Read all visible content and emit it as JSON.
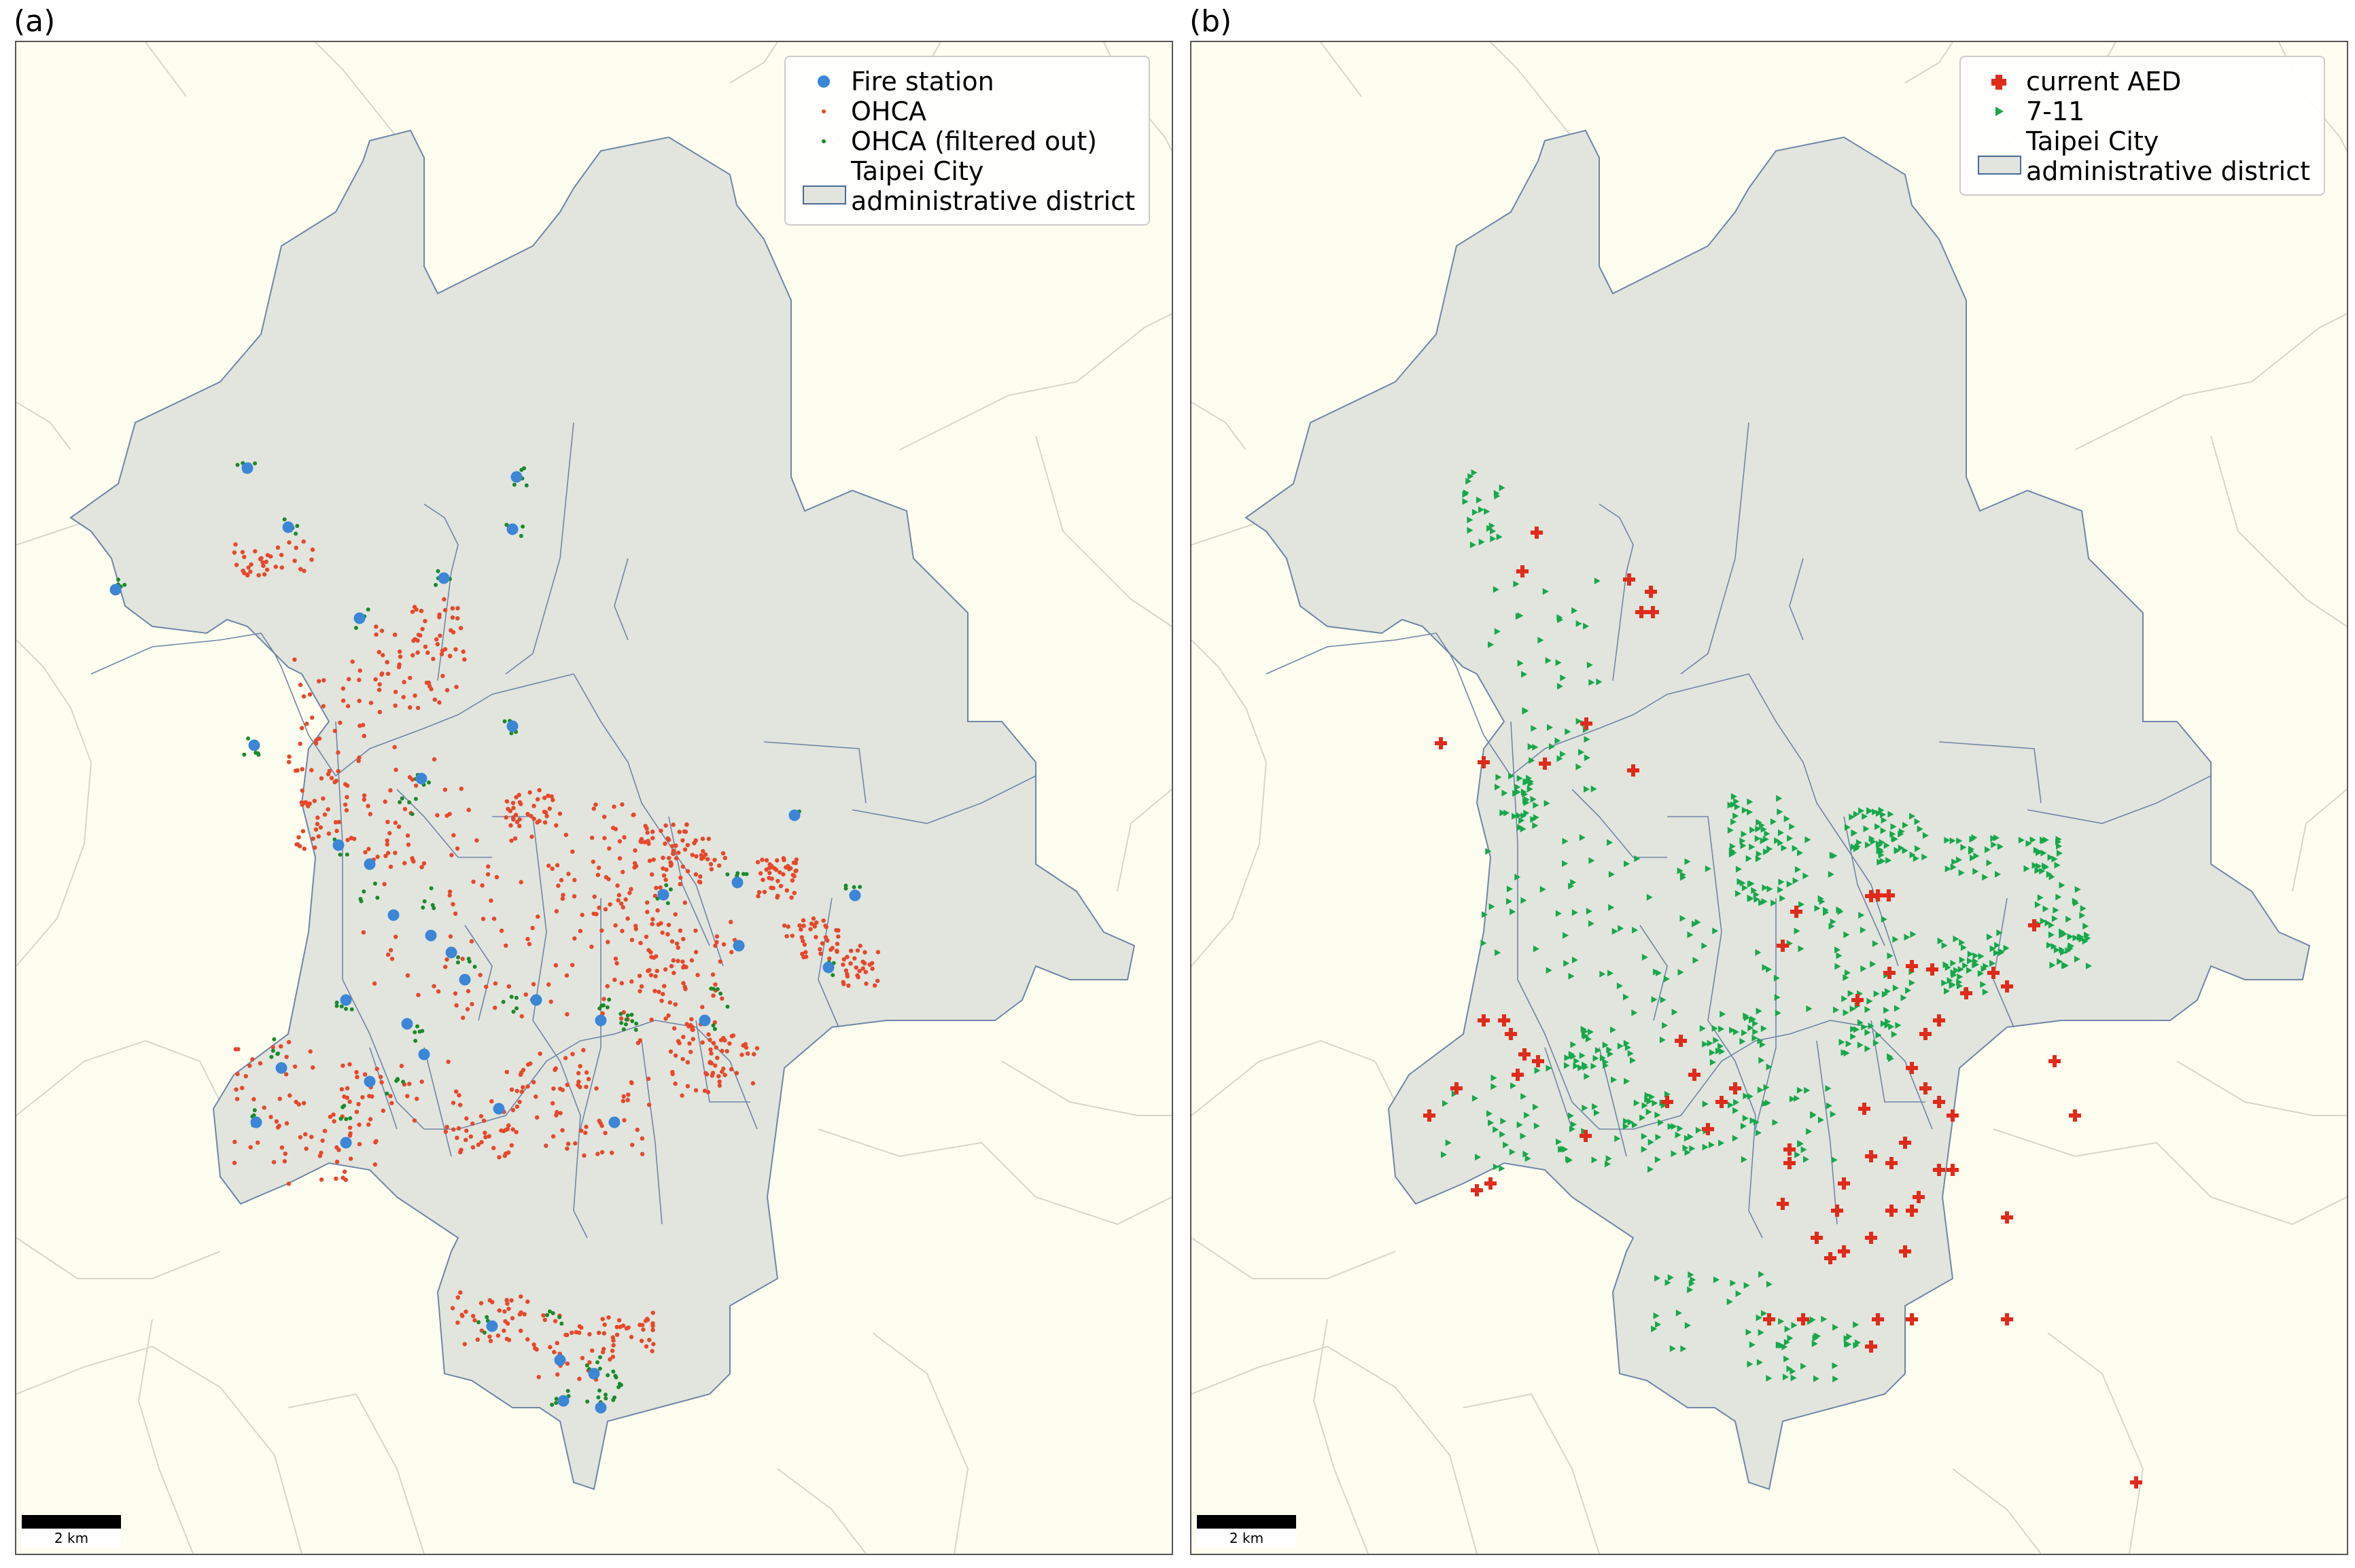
{
  "panels": {
    "a": {
      "label": "(a)",
      "scale_label": "2 km",
      "legend": [
        {
          "label": "Fire station",
          "symbol": "circle",
          "color": "#3b86d6"
        },
        {
          "label": "OHCA",
          "symbol": "small-dot",
          "color": "#e8472a"
        },
        {
          "label": "OHCA (filtered out)",
          "symbol": "small-dot",
          "color": "#1a8a2a"
        },
        {
          "label": "Taipei City\nadministrative district",
          "symbol": "patch",
          "color": "#e2e5de"
        }
      ]
    },
    "b": {
      "label": "(b)",
      "scale_label": "2 km",
      "legend": [
        {
          "label": "current AED",
          "symbol": "plus",
          "color": "#e02b1a"
        },
        {
          "label": "7-11",
          "symbol": "triangle",
          "color": "#16a84a"
        },
        {
          "label": "Taipei City\nadministrative district",
          "symbol": "patch",
          "color": "#e2e5de"
        }
      ]
    }
  },
  "colors": {
    "background": "#fefef0",
    "district_fill": "#e2e5de",
    "district_border": "#6f86a8",
    "context_lines": "#d6d6cc",
    "fire_station": "#3b86d6",
    "ohca": "#e8472a",
    "ohca_filtered": "#1a8a2a",
    "aed": "#e02b1a",
    "seven_eleven": "#16a84a"
  }
}
